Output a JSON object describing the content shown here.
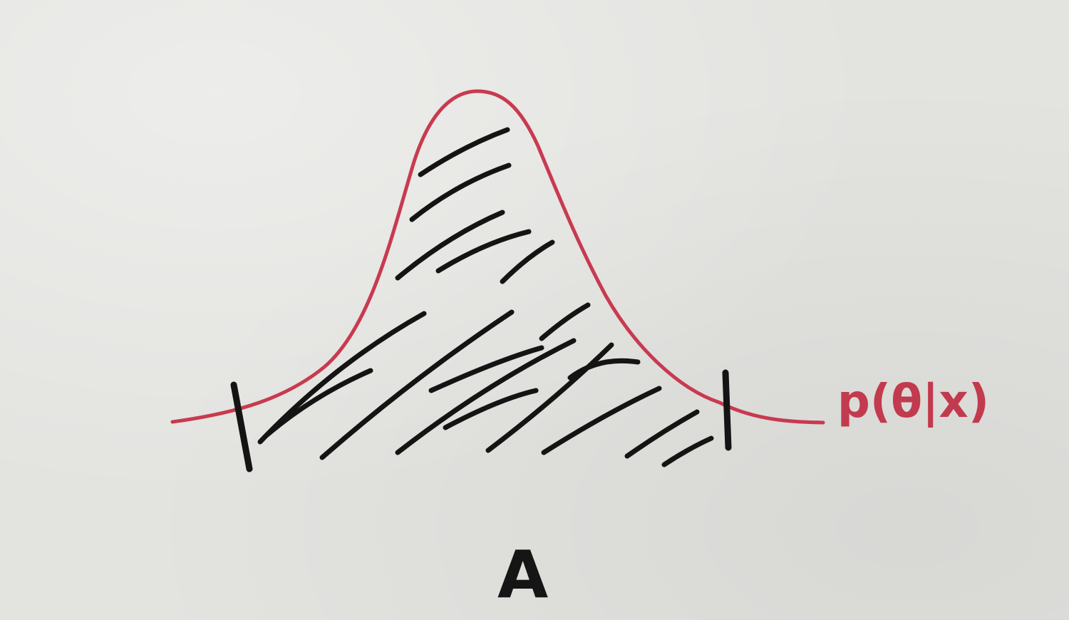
{
  "curve_label": "p(θ|x)",
  "region_label": "A",
  "colors": {
    "curve": "#c83a4f",
    "ink": "#141414",
    "paper": "#e3e3e0"
  }
}
